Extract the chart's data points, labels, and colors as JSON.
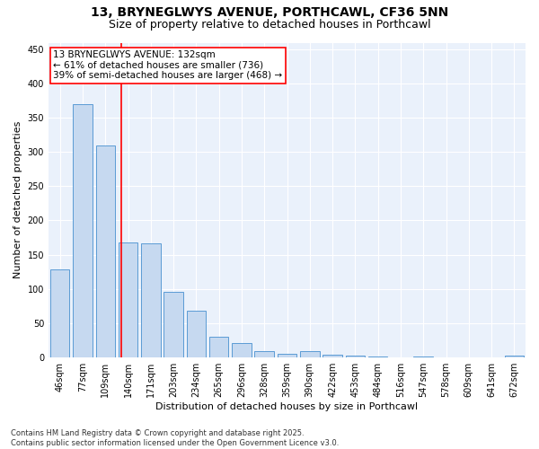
{
  "title": "13, BRYNEGLWYS AVENUE, PORTHCAWL, CF36 5NN",
  "subtitle": "Size of property relative to detached houses in Porthcawl",
  "xlabel": "Distribution of detached houses by size in Porthcawl",
  "ylabel": "Number of detached properties",
  "bar_labels": [
    "46sqm",
    "77sqm",
    "109sqm",
    "140sqm",
    "171sqm",
    "203sqm",
    "234sqm",
    "265sqm",
    "296sqm",
    "328sqm",
    "359sqm",
    "390sqm",
    "422sqm",
    "453sqm",
    "484sqm",
    "516sqm",
    "547sqm",
    "578sqm",
    "609sqm",
    "641sqm",
    "672sqm"
  ],
  "bar_values": [
    128,
    370,
    310,
    168,
    167,
    95,
    68,
    30,
    20,
    9,
    5,
    9,
    3,
    2,
    1,
    0,
    1,
    0,
    0,
    0,
    2
  ],
  "bar_color": "#c6d9f0",
  "bar_edge_color": "#5b9bd5",
  "vline_color": "red",
  "annotation_text": "13 BRYNEGLWYS AVENUE: 132sqm\n← 61% of detached houses are smaller (736)\n39% of semi-detached houses are larger (468) →",
  "annotation_box_color": "white",
  "annotation_box_edge_color": "red",
  "ylim": [
    0,
    460
  ],
  "yticks": [
    0,
    50,
    100,
    150,
    200,
    250,
    300,
    350,
    400,
    450
  ],
  "background_color": "#eaf1fb",
  "grid_color": "white",
  "footer": "Contains HM Land Registry data © Crown copyright and database right 2025.\nContains public sector information licensed under the Open Government Licence v3.0.",
  "title_fontsize": 10,
  "subtitle_fontsize": 9,
  "axis_label_fontsize": 8,
  "tick_fontsize": 7,
  "annotation_fontsize": 7.5,
  "footer_fontsize": 6
}
